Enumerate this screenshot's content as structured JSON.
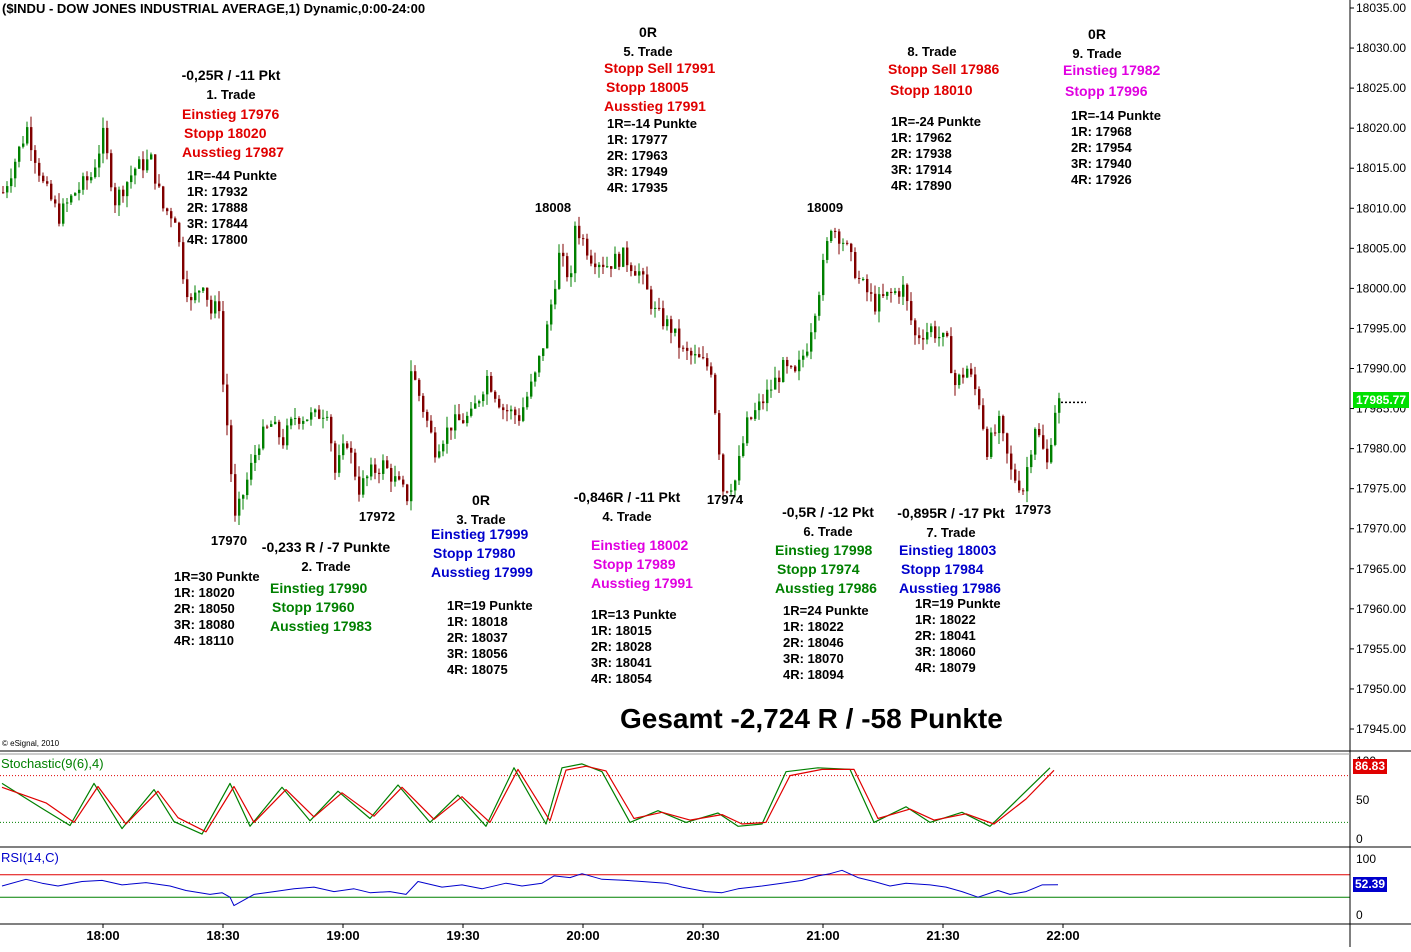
{
  "title": "($INDU - DOW JONES INDUSTRIAL AVERAGE,1) Dynamic,0:00-24:00",
  "copyright": "© eSignal, 2010",
  "current_price": "17985.77",
  "gesamt": "Gesamt -2,724 R / -58 Punkte",
  "colors": {
    "up": "#008000",
    "down": "#800000",
    "red": "#e00000",
    "green": "#008000",
    "blue": "#0000cc",
    "magenta": "#e000e0",
    "black": "#000000",
    "price_tag": "#00e000"
  },
  "swing_labels": [
    {
      "text": "18008",
      "color": "black",
      "anchor": "top"
    },
    {
      "text": "18009",
      "color": "black",
      "anchor": "top"
    },
    {
      "text": "17970",
      "color": "black",
      "anchor": "bottom"
    },
    {
      "text": "17972",
      "color": "black",
      "anchor": "bottom"
    },
    {
      "text": "17974",
      "color": "black",
      "anchor": "bottom"
    },
    {
      "text": "17973",
      "color": "black",
      "anchor": "bottom"
    }
  ],
  "trades": [
    {
      "name": "trade-1",
      "header": "-0,25R / -11 Pkt",
      "title": "1. Trade",
      "lines": [
        {
          "text": "Einstieg 17976",
          "color": "red"
        },
        {
          "text": "Stopp 18020",
          "color": "red"
        },
        {
          "text": "Ausstieg 17987",
          "color": "red"
        }
      ],
      "levels": [
        "1R=-44 Punkte",
        "1R: 17932",
        "2R: 17888",
        "3R: 17844",
        "4R: 17800"
      ]
    },
    {
      "name": "trade-2",
      "header": "-0,233 R / -7 Punkte",
      "title": "2. Trade",
      "lines": [
        {
          "text": "Einstieg 17990",
          "color": "green"
        },
        {
          "text": "Stopp 17960",
          "color": "green"
        },
        {
          "text": "Ausstieg 17983",
          "color": "green"
        }
      ],
      "levels": [
        "1R=30 Punkte",
        "1R: 18020",
        "2R: 18050",
        "3R: 18080",
        "4R: 18110"
      ]
    },
    {
      "name": "trade-3",
      "header": "0R",
      "title": "3. Trade",
      "lines": [
        {
          "text": "Einstieg 17999",
          "color": "blue"
        },
        {
          "text": "Stopp 17980",
          "color": "blue"
        },
        {
          "text": "Ausstieg 17999",
          "color": "blue"
        }
      ],
      "levels": [
        "1R=19 Punkte",
        "1R: 18018",
        "2R: 18037",
        "3R: 18056",
        "4R: 18075"
      ]
    },
    {
      "name": "trade-4",
      "header": "-0,846R / -11 Pkt",
      "title": "4. Trade",
      "lines": [
        {
          "text": "Einstieg 18002",
          "color": "magenta"
        },
        {
          "text": "Stopp 17989",
          "color": "magenta"
        },
        {
          "text": "Ausstieg 17991",
          "color": "magenta"
        }
      ],
      "levels": [
        "1R=13 Punkte",
        "1R: 18015",
        "2R: 18028",
        "3R: 18041",
        "4R: 18054"
      ]
    },
    {
      "name": "trade-5",
      "header": "0R",
      "title": "5. Trade",
      "lines": [
        {
          "text": "Stopp Sell 17991",
          "color": "red"
        },
        {
          "text": "Stopp 18005",
          "color": "red"
        },
        {
          "text": "Ausstieg 17991",
          "color": "red"
        }
      ],
      "levels": [
        "1R=-14 Punkte",
        "1R: 17977",
        "2R: 17963",
        "3R: 17949",
        "4R: 17935"
      ]
    },
    {
      "name": "trade-6",
      "header": "-0,5R / -12 Pkt",
      "title": "6. Trade",
      "lines": [
        {
          "text": "Einstieg 17998",
          "color": "green"
        },
        {
          "text": "Stopp 17974",
          "color": "green"
        },
        {
          "text": "Ausstieg 17986",
          "color": "green"
        }
      ],
      "levels": [
        "1R=24 Punkte",
        "1R: 18022",
        "2R: 18046",
        "3R: 18070",
        "4R: 18094"
      ]
    },
    {
      "name": "trade-7",
      "header": "-0,895R / -17 Pkt",
      "title": "7. Trade",
      "lines": [
        {
          "text": "Einstieg 18003",
          "color": "blue"
        },
        {
          "text": "Stopp 17984",
          "color": "blue"
        },
        {
          "text": "Ausstieg 17986",
          "color": "blue"
        }
      ],
      "levels": [
        "1R=19 Punkte",
        "1R: 18022",
        "2R: 18041",
        "3R: 18060",
        "4R: 18079"
      ]
    },
    {
      "name": "trade-8",
      "header": "",
      "title": "8. Trade",
      "lines": [
        {
          "text": "Stopp Sell 17986",
          "color": "red"
        },
        {
          "text": "Stopp 18010",
          "color": "red"
        }
      ],
      "levels": [
        "1R=-24 Punkte",
        "1R: 17962",
        "2R: 17938",
        "3R: 17914",
        "4R: 17890"
      ]
    },
    {
      "name": "trade-9",
      "header": "0R",
      "title": "9. Trade",
      "lines": [
        {
          "text": "Einstieg 17982",
          "color": "magenta"
        },
        {
          "text": "Stopp 17996",
          "color": "magenta"
        }
      ],
      "levels": [
        "1R=-14 Punkte",
        "1R: 17968",
        "2R: 17954",
        "3R: 17940",
        "4R: 17926"
      ]
    }
  ],
  "chart_data": [
    {
      "type": "candlestick",
      "title": "($INDU - DOW JONES INDUSTRIAL AVERAGE,1) Dynamic,0:00-24:00",
      "x_ticks": [
        "18:00",
        "18:30",
        "19:00",
        "19:30",
        "20:00",
        "20:30",
        "21:00",
        "21:30",
        "22:00"
      ],
      "y_ticks": [
        "18035.00",
        "18030.00",
        "18025.00",
        "18020.00",
        "18015.00",
        "18010.00",
        "18005.00",
        "18000.00",
        "17995.00",
        "17990.00",
        "17985.00",
        "17980.00",
        "17975.00",
        "17970.00",
        "17965.00",
        "17960.00",
        "17955.00",
        "17950.00",
        "17945.00"
      ],
      "ylim": [
        17942,
        18035
      ],
      "last": 17985.77,
      "anchors": [
        {
          "t": 0,
          "p": 18012
        },
        {
          "t": 6,
          "p": 18020
        },
        {
          "t": 10,
          "p": 18013
        },
        {
          "t": 14,
          "p": 18009
        },
        {
          "t": 18,
          "p": 18012
        },
        {
          "t": 22,
          "p": 18014
        },
        {
          "t": 25,
          "p": 18019
        },
        {
          "t": 28,
          "p": 18011
        },
        {
          "t": 33,
          "p": 18015
        },
        {
          "t": 37,
          "p": 18016
        },
        {
          "t": 40,
          "p": 18010
        },
        {
          "t": 43,
          "p": 18009
        },
        {
          "t": 45,
          "p": 18002
        },
        {
          "t": 47,
          "p": 17998
        },
        {
          "t": 50,
          "p": 18001
        },
        {
          "t": 52,
          "p": 17997
        },
        {
          "t": 54,
          "p": 17998
        },
        {
          "t": 55,
          "p": 17988
        },
        {
          "t": 56,
          "p": 17983
        },
        {
          "t": 58,
          "p": 17971
        },
        {
          "t": 61,
          "p": 17976
        },
        {
          "t": 64,
          "p": 17981
        },
        {
          "t": 67,
          "p": 17983
        },
        {
          "t": 70,
          "p": 17981
        },
        {
          "t": 73,
          "p": 17984
        },
        {
          "t": 78,
          "p": 17984
        },
        {
          "t": 81,
          "p": 17985
        },
        {
          "t": 83,
          "p": 17977
        },
        {
          "t": 86,
          "p": 17981
        },
        {
          "t": 89,
          "p": 17975
        },
        {
          "t": 92,
          "p": 17977
        },
        {
          "t": 95,
          "p": 17978
        },
        {
          "t": 98,
          "p": 17976
        },
        {
          "t": 101,
          "p": 17974
        },
        {
          "t": 102,
          "p": 17990
        },
        {
          "t": 105,
          "p": 17985
        },
        {
          "t": 108,
          "p": 17980
        },
        {
          "t": 112,
          "p": 17983
        },
        {
          "t": 117,
          "p": 17984
        },
        {
          "t": 121,
          "p": 17989
        },
        {
          "t": 125,
          "p": 17985
        },
        {
          "t": 129,
          "p": 17984
        },
        {
          "t": 133,
          "p": 17989
        },
        {
          "t": 136,
          "p": 17995
        },
        {
          "t": 139,
          "p": 18004
        },
        {
          "t": 142,
          "p": 18001
        },
        {
          "t": 143,
          "p": 18008
        },
        {
          "t": 147,
          "p": 18004
        },
        {
          "t": 151,
          "p": 18003
        },
        {
          "t": 155,
          "p": 18004
        },
        {
          "t": 159,
          "p": 18002
        },
        {
          "t": 163,
          "p": 17997
        },
        {
          "t": 167,
          "p": 17995
        },
        {
          "t": 170,
          "p": 17992
        },
        {
          "t": 174,
          "p": 17991
        },
        {
          "t": 177,
          "p": 17990
        },
        {
          "t": 180,
          "p": 17975
        },
        {
          "t": 183,
          "p": 17976
        },
        {
          "t": 186,
          "p": 17983
        },
        {
          "t": 190,
          "p": 17986
        },
        {
          "t": 195,
          "p": 17990
        },
        {
          "t": 198,
          "p": 17989
        },
        {
          "t": 201,
          "p": 17993
        },
        {
          "t": 204,
          "p": 18000
        },
        {
          "t": 207,
          "p": 18008
        },
        {
          "t": 210,
          "p": 18006
        },
        {
          "t": 214,
          "p": 18001
        },
        {
          "t": 218,
          "p": 17998
        },
        {
          "t": 221,
          "p": 17999
        },
        {
          "t": 225,
          "p": 18000
        },
        {
          "t": 228,
          "p": 17994
        },
        {
          "t": 232,
          "p": 17995
        },
        {
          "t": 236,
          "p": 17993
        },
        {
          "t": 238,
          "p": 17988
        },
        {
          "t": 241,
          "p": 17990
        },
        {
          "t": 244,
          "p": 17986
        },
        {
          "t": 246,
          "p": 17980
        },
        {
          "t": 249,
          "p": 17983
        },
        {
          "t": 252,
          "p": 17977
        },
        {
          "t": 255,
          "p": 17975
        },
        {
          "t": 258,
          "p": 17983
        },
        {
          "t": 261,
          "p": 17978
        },
        {
          "t": 263,
          "p": 17985
        },
        {
          "t": 264,
          "p": 17985.77
        }
      ]
    },
    {
      "type": "line",
      "title": "Stochastic(9(6),4)",
      "y_ticks": [
        "100",
        "50",
        "0"
      ],
      "ylim": [
        0,
        100
      ],
      "last_value": "86.83",
      "reference_lines": [
        80,
        20
      ],
      "series": [
        {
          "name": "%K",
          "color": "#008000",
          "x": [
            0,
            10,
            17,
            23,
            30,
            38,
            43,
            50,
            57,
            62,
            70,
            77,
            84,
            92,
            99,
            107,
            114,
            121,
            128,
            136,
            140,
            145,
            150,
            157,
            164,
            171,
            179,
            184,
            190,
            196,
            204,
            212,
            218,
            226,
            232,
            240,
            247,
            255,
            262
          ],
          "values": [
            70,
            38,
            16,
            70,
            12,
            62,
            21,
            5,
            70,
            15,
            65,
            22,
            60,
            25,
            68,
            20,
            55,
            15,
            90,
            18,
            90,
            95,
            85,
            20,
            35,
            20,
            32,
            15,
            18,
            85,
            90,
            88,
            20,
            40,
            20,
            33,
            15,
            55,
            90
          ]
        },
        {
          "name": "%D",
          "color": "#e00000",
          "x": [
            0,
            11,
            18,
            24,
            31,
            39,
            44,
            51,
            58,
            63,
            71,
            78,
            85,
            93,
            100,
            108,
            115,
            122,
            129,
            137,
            141,
            146,
            151,
            158,
            165,
            172,
            180,
            185,
            191,
            197,
            205,
            213,
            219,
            227,
            233,
            241,
            248,
            256,
            263
          ],
          "values": [
            65,
            45,
            20,
            66,
            18,
            60,
            26,
            8,
            66,
            20,
            62,
            27,
            58,
            28,
            65,
            24,
            53,
            20,
            88,
            22,
            87,
            92,
            86,
            25,
            33,
            23,
            30,
            18,
            20,
            80,
            88,
            88,
            25,
            37,
            23,
            31,
            18,
            50,
            86.83
          ]
        }
      ]
    },
    {
      "type": "line",
      "title": "RSI(14,C)",
      "y_ticks": [
        "100",
        "50",
        "0"
      ],
      "ylim": [
        0,
        100
      ],
      "last_value": "52.39",
      "reference_lines": [
        70,
        30
      ],
      "series": [
        {
          "name": "RSI",
          "color": "#0000cc",
          "x": [
            0,
            6,
            10,
            14,
            20,
            25,
            30,
            36,
            42,
            46,
            52,
            55,
            57,
            58,
            63,
            68,
            73,
            78,
            83,
            88,
            92,
            97,
            101,
            104,
            110,
            115,
            120,
            126,
            130,
            135,
            138,
            142,
            145,
            150,
            156,
            160,
            166,
            170,
            176,
            180,
            184,
            190,
            195,
            200,
            204,
            207,
            210,
            214,
            218,
            222,
            226,
            232,
            236,
            240,
            244,
            249,
            252,
            256,
            260,
            264
          ],
          "values": [
            50,
            62,
            55,
            50,
            58,
            60,
            52,
            56,
            50,
            42,
            35,
            38,
            30,
            15,
            35,
            40,
            45,
            48,
            40,
            45,
            38,
            40,
            35,
            58,
            48,
            52,
            45,
            55,
            50,
            55,
            68,
            65,
            72,
            62,
            60,
            58,
            55,
            48,
            40,
            38,
            45,
            50,
            55,
            60,
            68,
            72,
            78,
            65,
            58,
            50,
            55,
            52,
            48,
            40,
            30,
            42,
            35,
            40,
            52,
            52.39
          ]
        }
      ]
    }
  ]
}
